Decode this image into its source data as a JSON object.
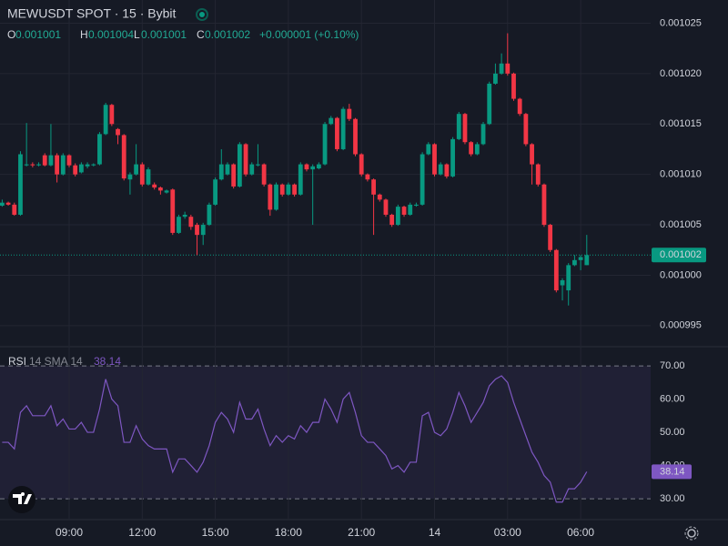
{
  "header": {
    "title": "MEWUSDT SPOT · 15 · Bybit",
    "ohlc_legend": [
      {
        "key": "O",
        "value": "0.001001"
      },
      {
        "key": "H",
        "value": "0.001004"
      },
      {
        "key": "L",
        "value": "0.001001"
      },
      {
        "key": "C",
        "value": "0.001002"
      }
    ],
    "change": "+0.000001 (+0.10%)"
  },
  "chart_data": {
    "type": "candlestick",
    "categories": [
      null,
      null,
      null,
      null,
      null,
      null,
      null,
      null,
      null,
      null,
      null,
      "09:00",
      null,
      null,
      null,
      null,
      null,
      null,
      null,
      null,
      null,
      null,
      null,
      "12:00",
      null,
      null,
      null,
      null,
      null,
      null,
      null,
      null,
      null,
      null,
      null,
      "15:00",
      null,
      null,
      null,
      null,
      null,
      null,
      null,
      null,
      null,
      null,
      null,
      "18:00",
      null,
      null,
      null,
      null,
      null,
      null,
      null,
      null,
      null,
      null,
      null,
      "21:00",
      null,
      null,
      null,
      null,
      null,
      null,
      null,
      null,
      null,
      null,
      null,
      "14",
      null,
      null,
      null,
      null,
      null,
      null,
      null,
      null,
      null,
      null,
      null,
      "03:00",
      null,
      null,
      null,
      null,
      null,
      null,
      null,
      null,
      null,
      null,
      null,
      "06:00",
      null
    ],
    "open": [
      0.0010069,
      0.0010072,
      0.001007,
      0.001006,
      0.0010109,
      0.001011,
      0.0010109,
      0.0010119,
      0.0010109,
      0.0010119,
      0.00101,
      0.0010119,
      0.0010109,
      0.0010102,
      0.0010108,
      0.0010109,
      0.001011,
      0.001014,
      0.0010169,
      0.0010145,
      0.0010139,
      0.0010095,
      0.00101,
      0.001011,
      0.001009,
      0.001009,
      0.0010087,
      0.0010082,
      0.0010085,
      0.0010042,
      0.0010058,
      0.0010058,
      0.001005,
      0.001004,
      0.001005,
      0.001007,
      0.0010095,
      0.00101,
      0.001011,
      0.0010088,
      0.001013,
      0.00101,
      0.0010109,
      0.001011,
      0.001009,
      0.0010065,
      0.001009,
      0.001008,
      0.001009,
      0.001008,
      0.001011,
      0.0010105,
      0.0010106,
      0.001011,
      0.001015,
      0.0010156,
      0.0010125,
      0.0010165,
      0.0010155,
      0.001012,
      0.00101,
      0.0010095,
      0.001008,
      0.0010075,
      0.001006,
      0.001005,
      0.0010068,
      0.001006,
      0.0010069,
      0.001007,
      0.001012,
      0.001013,
      0.00101,
      0.001011,
      0.0010098,
      0.0010135,
      0.001016,
      0.0010132,
      0.001012,
      0.001013,
      0.001015,
      0.001019,
      0.00102,
      0.001021,
      0.00102,
      0.0010175,
      0.001016,
      0.001013,
      0.001011,
      0.001009,
      0.001005,
      0.0010025,
      0.000999,
      0.0009985,
      0.001001,
      0.0010015,
      0.001001
    ],
    "high": [
      0.0010075,
      0.0010073,
      0.0010072,
      0.0010123,
      0.0010151,
      0.0010112,
      0.0010112,
      0.0010121,
      0.001015,
      0.0010121,
      0.0010121,
      0.001012,
      0.0010111,
      0.0010112,
      0.0010112,
      0.0010111,
      0.0010142,
      0.0010171,
      0.001017,
      0.0010146,
      0.001014,
      0.0010102,
      0.001013,
      0.0010112,
      0.0010107,
      0.0010092,
      0.0010088,
      0.0010085,
      0.0010086,
      0.001006,
      0.0010063,
      0.001006,
      0.0010052,
      0.0010052,
      0.0010072,
      0.0010097,
      0.0010125,
      0.0010112,
      0.0010111,
      0.0010132,
      0.0010131,
      0.0010112,
      0.001013,
      0.0010111,
      0.0010091,
      0.0010092,
      0.0010091,
      0.0010092,
      0.0010091,
      0.0010112,
      0.0010111,
      0.001011,
      0.0010112,
      0.0010152,
      0.0010158,
      0.0010157,
      0.0010167,
      0.001017,
      0.0010156,
      0.0010121,
      0.0010101,
      0.0010096,
      0.0010081,
      0.0010076,
      0.0010061,
      0.001007,
      0.0010069,
      0.0010072,
      0.0010072,
      0.0010122,
      0.0010132,
      0.0010131,
      0.0010112,
      0.0010111,
      0.0010137,
      0.0010162,
      0.0010161,
      0.0010133,
      0.0010132,
      0.0010152,
      0.0010192,
      0.001021,
      0.001022,
      0.001024,
      0.0010201,
      0.0010176,
      0.0010161,
      0.0010131,
      0.0010111,
      0.0010091,
      0.0010051,
      0.0010026,
      0.0009997,
      0.0010012,
      0.001002,
      0.001002,
      0.001004
    ],
    "low": [
      0.0010068,
      0.0010069,
      0.0010059,
      0.0010059,
      0.0010108,
      0.0010107,
      0.0010108,
      0.0010108,
      0.0010108,
      0.0010092,
      0.0010099,
      0.0010107,
      0.0010098,
      0.0010101,
      0.0010106,
      0.0010108,
      0.0010109,
      0.0010139,
      0.0010148,
      0.001013,
      0.0010094,
      0.001008,
      0.0010099,
      0.0010088,
      0.0010089,
      0.0010085,
      0.001008,
      0.0010081,
      0.001004,
      0.0010041,
      0.0010056,
      0.0010045,
      0.001002,
      0.001003,
      0.0010049,
      0.0010069,
      0.0010094,
      0.0010099,
      0.0010086,
      0.0010087,
      0.0010098,
      0.0010099,
      0.0010108,
      0.0010088,
      0.0010059,
      0.0010064,
      0.0010078,
      0.0010079,
      0.0010078,
      0.0010079,
      0.0010103,
      0.001005,
      0.0010105,
      0.0010109,
      0.0010149,
      0.0010123,
      0.0010124,
      0.0010153,
      0.0010118,
      0.0010098,
      0.0010093,
      0.001004,
      0.0010073,
      0.0010058,
      0.0010048,
      0.0010049,
      0.0010058,
      0.0010059,
      0.0010068,
      0.0010069,
      0.0010119,
      0.0010098,
      0.0010099,
      0.0010096,
      0.0010097,
      0.0010134,
      0.001013,
      0.0010118,
      0.0010119,
      0.0010129,
      0.0010149,
      0.0010189,
      0.0010199,
      0.0010198,
      0.0010173,
      0.0010158,
      0.0010128,
      0.001009,
      0.0010088,
      0.0010048,
      0.0010023,
      0.0009983,
      0.0009975,
      0.000997,
      0.0010009,
      0.0010005,
      0.001001
    ],
    "close": [
      0.0010072,
      0.001007,
      0.001006,
      0.001012,
      0.001011,
      0.0010109,
      0.001011,
      0.0010109,
      0.0010119,
      0.00101,
      0.0010119,
      0.0010109,
      0.00101,
      0.001011,
      0.001011,
      0.001011,
      0.001014,
      0.0010169,
      0.001015,
      0.0010139,
      0.0010096,
      0.00101,
      0.001011,
      0.001009,
      0.0010105,
      0.0010087,
      0.0010084,
      0.0010084,
      0.0010042,
      0.0010058,
      0.001006,
      0.0010048,
      0.001004,
      0.001005,
      0.001007,
      0.0010095,
      0.001011,
      0.001011,
      0.0010088,
      0.001013,
      0.00101,
      0.001011,
      0.001011,
      0.001009,
      0.0010065,
      0.001009,
      0.001008,
      0.001009,
      0.001008,
      0.001011,
      0.0010105,
      0.0010108,
      0.001011,
      0.001015,
      0.0010156,
      0.0010125,
      0.0010165,
      0.0010155,
      0.001012,
      0.00101,
      0.0010095,
      0.001008,
      0.0010075,
      0.001006,
      0.001005,
      0.0010068,
      0.001006,
      0.001007,
      0.001007,
      0.001012,
      0.001013,
      0.00101,
      0.001011,
      0.0010098,
      0.0010135,
      0.001016,
      0.0010132,
      0.001012,
      0.001013,
      0.001015,
      0.001019,
      0.00102,
      0.001021,
      0.00102,
      0.0010175,
      0.001016,
      0.001013,
      0.001011,
      0.001009,
      0.001005,
      0.0010025,
      0.0009985,
      0.0009995,
      0.001001,
      0.0010015,
      0.0010018,
      0.001002
    ],
    "up_color": "#089981",
    "down_color": "#f23645",
    "ylim": [
      0.000993,
      0.0010273
    ],
    "yticks": [
      0.000995,
      {
        "value": 0.001,
        "label": "0.001000"
      },
      0.001005,
      {
        "value": 0.00101,
        "label": "0.001010"
      },
      0.001015,
      {
        "value": 0.00102,
        "label": "0.001020"
      },
      0.001025
    ],
    "grid": true,
    "last_price": 0.001002,
    "rsi": {
      "type": "line",
      "title": "RSI",
      "params": "14 SMA 14",
      "color": "#7e57c2",
      "values": [
        47,
        47,
        45,
        56,
        58,
        55,
        55,
        55,
        58,
        52,
        54,
        51,
        51,
        53,
        50,
        50,
        57,
        66,
        60,
        58,
        47,
        47,
        52,
        48,
        46,
        45,
        45,
        45,
        38,
        42,
        42,
        40,
        38,
        41,
        46,
        53,
        56,
        54,
        50,
        59,
        54,
        54,
        57,
        51,
        46,
        49,
        47,
        49,
        48,
        52,
        50,
        53,
        53,
        60,
        57,
        53,
        60,
        62,
        56,
        49,
        47,
        47,
        45,
        43,
        39,
        40,
        38,
        41,
        41,
        55,
        56,
        50,
        49,
        51,
        56,
        62,
        58,
        53,
        56,
        59,
        64,
        66,
        67,
        65,
        59,
        54,
        49,
        44,
        41,
        37,
        35,
        29,
        29,
        33,
        33,
        35,
        38.14
      ],
      "ylim": [
        24,
        75.5
      ],
      "yticks": [
        {
          "value": 30,
          "label": "30.00"
        },
        {
          "value": 40,
          "label": "40.00"
        },
        {
          "value": 50,
          "label": "50.00"
        },
        {
          "value": 60,
          "label": "60.00"
        },
        {
          "value": 70,
          "label": "70.00"
        }
      ],
      "bands": [
        70,
        30
      ]
    }
  }
}
